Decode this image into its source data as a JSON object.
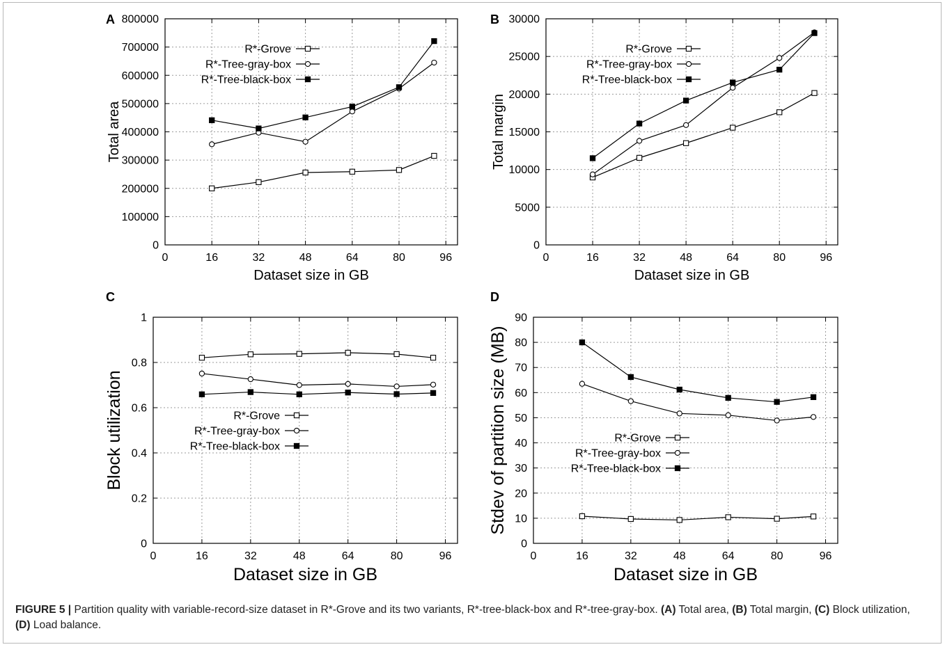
{
  "caption": {
    "label": "FIGURE 5 |",
    "text": " Partition quality with variable-record-size dataset in R*-Grove and its two variants, R*-tree-black-box and R*-tree-gray-box. ",
    "parts": [
      {
        "key": "(A)",
        "text": " Total area, "
      },
      {
        "key": "(B)",
        "text": " Total margin, "
      },
      {
        "key": "(C)",
        "text": " Block utilization, "
      },
      {
        "key": "(D)",
        "text": " Load balance."
      }
    ]
  },
  "colors": {
    "line": "#000000",
    "grid": "#9a9a9a"
  },
  "chart_data": [
    {
      "panel": "A",
      "type": "line",
      "xlabel": "Dataset size in GB",
      "ylabel": "Total area",
      "xlim": [
        0,
        100
      ],
      "ylim": [
        0,
        800000
      ],
      "xticks": [
        0,
        16,
        32,
        48,
        64,
        80,
        96
      ],
      "yticks": [
        0,
        100000,
        200000,
        300000,
        400000,
        500000,
        600000,
        700000,
        800000
      ],
      "grid": true,
      "legend": "top-left",
      "x": [
        16,
        32,
        48,
        64,
        80,
        92
      ],
      "series": [
        {
          "name": "R*-Grove",
          "marker": "open-square",
          "values": [
            200000,
            222000,
            256000,
            259000,
            265000,
            315000
          ]
        },
        {
          "name": "R*-Tree-gray-box",
          "marker": "open-circle",
          "values": [
            356000,
            397000,
            365000,
            472000,
            553000,
            645000
          ]
        },
        {
          "name": "R*-Tree-black-box",
          "marker": "filled-square",
          "values": [
            441000,
            412000,
            451000,
            489000,
            558000,
            721000
          ]
        }
      ]
    },
    {
      "panel": "B",
      "type": "line",
      "xlabel": "Dataset size in GB",
      "ylabel": "Total margin",
      "xlim": [
        0,
        100
      ],
      "ylim": [
        0,
        30000
      ],
      "xticks": [
        0,
        16,
        32,
        48,
        64,
        80,
        96
      ],
      "yticks": [
        0,
        5000,
        10000,
        15000,
        20000,
        25000,
        30000
      ],
      "grid": true,
      "legend": "top-left",
      "x": [
        16,
        32,
        48,
        64,
        80,
        92
      ],
      "series": [
        {
          "name": "R*-Grove",
          "marker": "open-square",
          "values": [
            8950,
            11550,
            13500,
            15550,
            17600,
            20150
          ]
        },
        {
          "name": "R*-Tree-gray-box",
          "marker": "open-circle",
          "values": [
            9350,
            13800,
            15900,
            20850,
            24800,
            28200
          ]
        },
        {
          "name": "R*-Tree-black-box",
          "marker": "filled-square",
          "values": [
            11500,
            16100,
            19150,
            21550,
            23250,
            28100
          ]
        }
      ]
    },
    {
      "panel": "C",
      "type": "line",
      "xlabel": "Dataset size in GB",
      "ylabel": "Block utilization",
      "xlim": [
        0,
        100
      ],
      "ylim": [
        0,
        1
      ],
      "xticks": [
        0,
        16,
        32,
        48,
        64,
        80,
        96
      ],
      "yticks": [
        0,
        0.2,
        0.4,
        0.6,
        0.8,
        1
      ],
      "grid": true,
      "legend": "center-left",
      "x": [
        16,
        32,
        48,
        64,
        80,
        92
      ],
      "series": [
        {
          "name": "R*-Grove",
          "marker": "open-square",
          "values": [
            0.821,
            0.836,
            0.838,
            0.843,
            0.837,
            0.821
          ]
        },
        {
          "name": "R*-Tree-gray-box",
          "marker": "open-circle",
          "values": [
            0.751,
            0.726,
            0.7,
            0.705,
            0.694,
            0.702
          ]
        },
        {
          "name": "R*-Tree-black-box",
          "marker": "filled-square",
          "values": [
            0.659,
            0.669,
            0.659,
            0.667,
            0.66,
            0.665
          ]
        }
      ]
    },
    {
      "panel": "D",
      "type": "line",
      "xlabel": "Dataset size in GB",
      "ylabel": "Stdev of partition size (MB)",
      "xlim": [
        0,
        100
      ],
      "ylim": [
        0,
        90
      ],
      "xticks": [
        0,
        16,
        32,
        48,
        64,
        80,
        96
      ],
      "yticks": [
        0,
        10,
        20,
        30,
        40,
        50,
        60,
        70,
        80,
        90
      ],
      "grid": true,
      "legend": "center-left",
      "x": [
        16,
        32,
        48,
        64,
        80,
        92
      ],
      "series": [
        {
          "name": "R*-Grove",
          "marker": "open-square",
          "values": [
            10.8,
            9.7,
            9.3,
            10.4,
            9.8,
            10.7
          ]
        },
        {
          "name": "R*-Tree-gray-box",
          "marker": "open-circle",
          "values": [
            63.5,
            56.6,
            51.7,
            51.0,
            48.9,
            50.3
          ]
        },
        {
          "name": "R*-Tree-black-box",
          "marker": "filled-square",
          "values": [
            80.0,
            66.2,
            61.2,
            57.9,
            56.3,
            58.2
          ]
        }
      ]
    }
  ]
}
